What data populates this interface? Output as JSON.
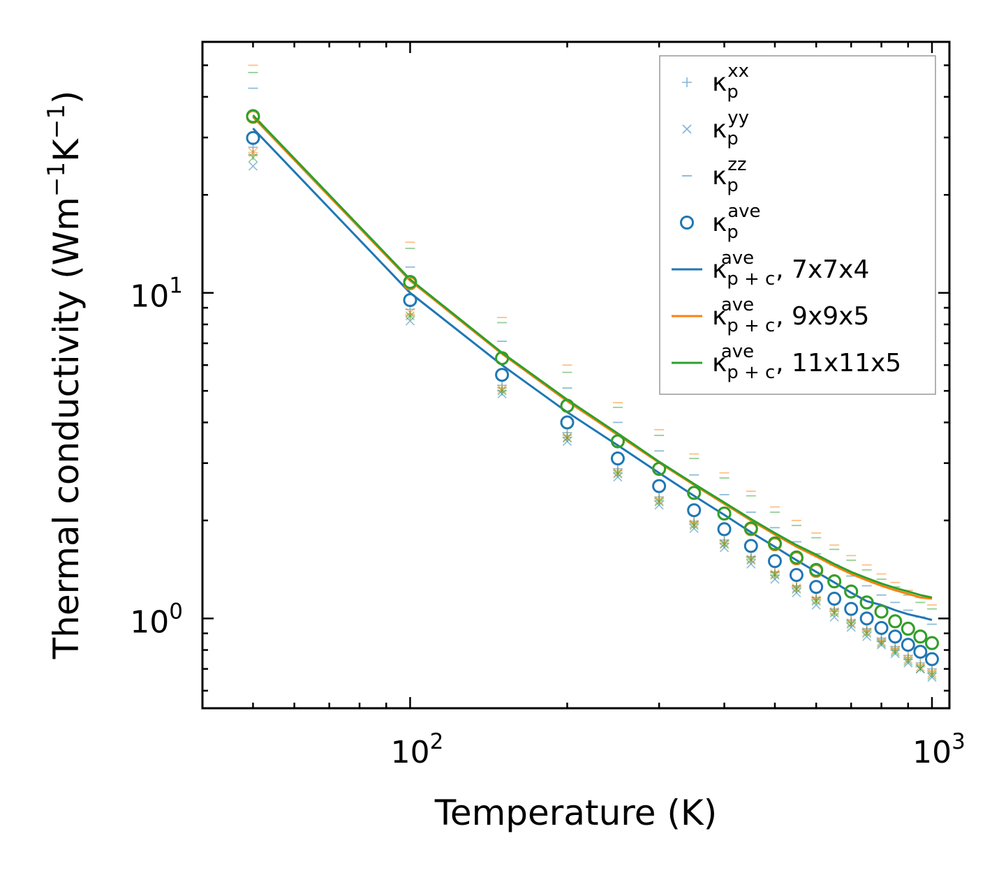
{
  "chart_data": {
    "type": "scatter",
    "title": "",
    "xlabel": "Temperature (K)",
    "ylabel_main": "Thermal conductivity (Wm",
    "ylabel_exp1": "−1",
    "ylabel_mid": "K",
    "ylabel_exp2": "−1",
    "ylabel_end": ")",
    "xscale": "log",
    "yscale": "log",
    "xlim": [
      40,
      1080
    ],
    "ylim": [
      0.53,
      59
    ],
    "x_ticks": [
      {
        "value": 100,
        "base": "10",
        "exp": "2"
      },
      {
        "value": 1000,
        "base": "10",
        "exp": "3"
      }
    ],
    "y_ticks": [
      {
        "value": 1,
        "base": "10",
        "exp": "0"
      },
      {
        "value": 10,
        "base": "10",
        "exp": "1"
      }
    ],
    "legend_position": "top-right",
    "colors": {
      "blue": "#1f77b4",
      "orange": "#ff7f0e",
      "green": "#2ca02c"
    },
    "temperatures": [
      50,
      100,
      150,
      200,
      250,
      300,
      350,
      400,
      450,
      500,
      550,
      600,
      650,
      700,
      750,
      800,
      850,
      900,
      950,
      1000
    ],
    "series": [
      {
        "name": "kappa_p^ave, 7x7x4 (blue)",
        "marker": "circle",
        "color": "#1f77b4",
        "values": [
          29.9,
          9.5,
          5.6,
          4.0,
          3.1,
          2.55,
          2.15,
          1.88,
          1.67,
          1.5,
          1.36,
          1.25,
          1.15,
          1.07,
          1.0,
          0.935,
          0.88,
          0.83,
          0.79,
          0.75
        ]
      },
      {
        "name": "kappa_p^ave, 9x9x5 (orange)",
        "marker": "circle",
        "color": "#ff7f0e",
        "values": [
          34.7,
          10.7,
          6.3,
          4.5,
          3.5,
          2.88,
          2.43,
          2.1,
          1.88,
          1.69,
          1.53,
          1.4,
          1.3,
          1.21,
          1.12,
          1.05,
          0.98,
          0.93,
          0.88,
          0.84
        ]
      },
      {
        "name": "kappa_p^ave, 11x11x5 (green)",
        "marker": "circle",
        "color": "#2ca02c",
        "values": [
          34.9,
          10.8,
          6.3,
          4.5,
          3.5,
          2.88,
          2.43,
          2.1,
          1.89,
          1.7,
          1.54,
          1.41,
          1.3,
          1.21,
          1.12,
          1.05,
          0.98,
          0.93,
          0.88,
          0.84
        ]
      },
      {
        "name": "kappa_p+c^ave, 7x7x4",
        "marker": "line",
        "color": "#1f77b4",
        "values": [
          32.0,
          10.0,
          6.0,
          4.3,
          3.4,
          2.8,
          2.38,
          2.08,
          1.84,
          1.66,
          1.51,
          1.39,
          1.29,
          1.2,
          1.13,
          1.1,
          1.06,
          1.03,
          1.01,
          0.99
        ]
      },
      {
        "name": "kappa_p+c^ave, 9x9x5",
        "marker": "line",
        "color": "#ff7f0e",
        "values": [
          34.7,
          10.9,
          6.5,
          4.65,
          3.66,
          3.01,
          2.57,
          2.25,
          2.0,
          1.81,
          1.66,
          1.55,
          1.45,
          1.37,
          1.31,
          1.26,
          1.22,
          1.19,
          1.16,
          1.15
        ]
      },
      {
        "name": "kappa_p+c^ave, 11x11x5",
        "marker": "line",
        "color": "#2ca02c",
        "values": [
          35.1,
          11.0,
          6.55,
          4.7,
          3.7,
          3.03,
          2.59,
          2.27,
          2.02,
          1.83,
          1.68,
          1.57,
          1.47,
          1.39,
          1.33,
          1.28,
          1.24,
          1.21,
          1.18,
          1.16
        ]
      },
      {
        "name": "kappa_p^xx, 7x7x4",
        "marker": "plus",
        "color": "#1f77b4",
        "values": [
          28.0,
          8.9,
          5.2,
          3.72,
          2.88,
          2.36,
          1.99,
          1.74,
          1.55,
          1.39,
          1.26,
          1.16,
          1.07,
          0.99,
          0.93,
          0.87,
          0.82,
          0.77,
          0.73,
          0.7
        ]
      },
      {
        "name": "kappa_p^xx, 9x9x5",
        "marker": "plus",
        "color": "#ff7f0e",
        "values": [
          27.0,
          8.6,
          5.1,
          3.65,
          2.84,
          2.33,
          1.97,
          1.72,
          1.54,
          1.38,
          1.25,
          1.15,
          1.06,
          0.98,
          0.92,
          0.86,
          0.81,
          0.76,
          0.72,
          0.69
        ]
      },
      {
        "name": "kappa_p^xx, 11x11x5",
        "marker": "plus",
        "color": "#2ca02c",
        "values": [
          26.5,
          8.5,
          5.0,
          3.6,
          2.8,
          2.3,
          1.95,
          1.7,
          1.52,
          1.36,
          1.24,
          1.14,
          1.05,
          0.97,
          0.91,
          0.85,
          0.8,
          0.75,
          0.71,
          0.68
        ]
      },
      {
        "name": "kappa_p^yy, 7x7x4",
        "marker": "x",
        "color": "#1f77b4",
        "values": [
          24.5,
          8.2,
          4.9,
          3.5,
          2.72,
          2.23,
          1.89,
          1.65,
          1.47,
          1.32,
          1.2,
          1.1,
          1.01,
          0.94,
          0.88,
          0.83,
          0.78,
          0.73,
          0.7,
          0.66
        ]
      },
      {
        "name": "kappa_p^yy, 9x9x5",
        "marker": "x",
        "color": "#ff7f0e",
        "values": [
          27.0,
          8.7,
          5.05,
          3.6,
          2.8,
          2.3,
          1.95,
          1.7,
          1.52,
          1.37,
          1.24,
          1.14,
          1.05,
          0.97,
          0.91,
          0.85,
          0.8,
          0.75,
          0.71,
          0.68
        ]
      },
      {
        "name": "kappa_p^yy, 11x11x5",
        "marker": "x",
        "color": "#2ca02c",
        "values": [
          26.0,
          8.5,
          5.0,
          3.58,
          2.78,
          2.28,
          1.93,
          1.69,
          1.51,
          1.36,
          1.23,
          1.13,
          1.04,
          0.96,
          0.9,
          0.84,
          0.79,
          0.74,
          0.7,
          0.67
        ]
      },
      {
        "name": "kappa_p^zz, 7x7x4",
        "marker": "hline",
        "color": "#1f77b4",
        "values": [
          42.5,
          12.0,
          7.1,
          5.1,
          4.0,
          3.27,
          2.76,
          2.4,
          2.12,
          1.9,
          1.72,
          1.58,
          1.46,
          1.35,
          1.26,
          1.18,
          1.12,
          1.06,
          1.01,
          0.96
        ]
      },
      {
        "name": "kappa_p^zz, 9x9x5",
        "marker": "hline",
        "color": "#ff7f0e",
        "values": [
          50.0,
          14.3,
          8.4,
          6.0,
          4.6,
          3.8,
          3.2,
          2.8,
          2.46,
          2.2,
          2.0,
          1.83,
          1.68,
          1.56,
          1.46,
          1.37,
          1.29,
          1.22,
          1.16,
          1.1
        ]
      },
      {
        "name": "kappa_p^zz, 11x11x5",
        "marker": "hline",
        "color": "#2ca02c",
        "values": [
          47.5,
          13.7,
          8.1,
          5.7,
          4.45,
          3.65,
          3.1,
          2.7,
          2.38,
          2.12,
          1.93,
          1.77,
          1.63,
          1.51,
          1.41,
          1.32,
          1.25,
          1.18,
          1.12,
          1.07
        ]
      }
    ],
    "legend": [
      {
        "marker": "plus",
        "color": "#1f77b4",
        "sym": "κ",
        "sub": "p",
        "sup": "xx",
        "suffix": ""
      },
      {
        "marker": "x",
        "color": "#1f77b4",
        "sym": "κ",
        "sub": "p",
        "sup": "yy",
        "suffix": ""
      },
      {
        "marker": "hline",
        "color": "#1f77b4",
        "sym": "κ",
        "sub": "p",
        "sup": "zz",
        "suffix": ""
      },
      {
        "marker": "circle",
        "color": "#1f77b4",
        "sym": "κ",
        "sub": "p",
        "sup": "ave",
        "suffix": ""
      },
      {
        "marker": "line",
        "color": "#1f77b4",
        "sym": "κ",
        "sub": "p + c",
        "sup": "ave",
        "suffix": ", 7x7x4"
      },
      {
        "marker": "line",
        "color": "#ff7f0e",
        "sym": "κ",
        "sub": "p + c",
        "sup": "ave",
        "suffix": ", 9x9x5"
      },
      {
        "marker": "line",
        "color": "#2ca02c",
        "sym": "κ",
        "sub": "p + c",
        "sup": "ave",
        "suffix": ", 11x11x5"
      }
    ]
  }
}
